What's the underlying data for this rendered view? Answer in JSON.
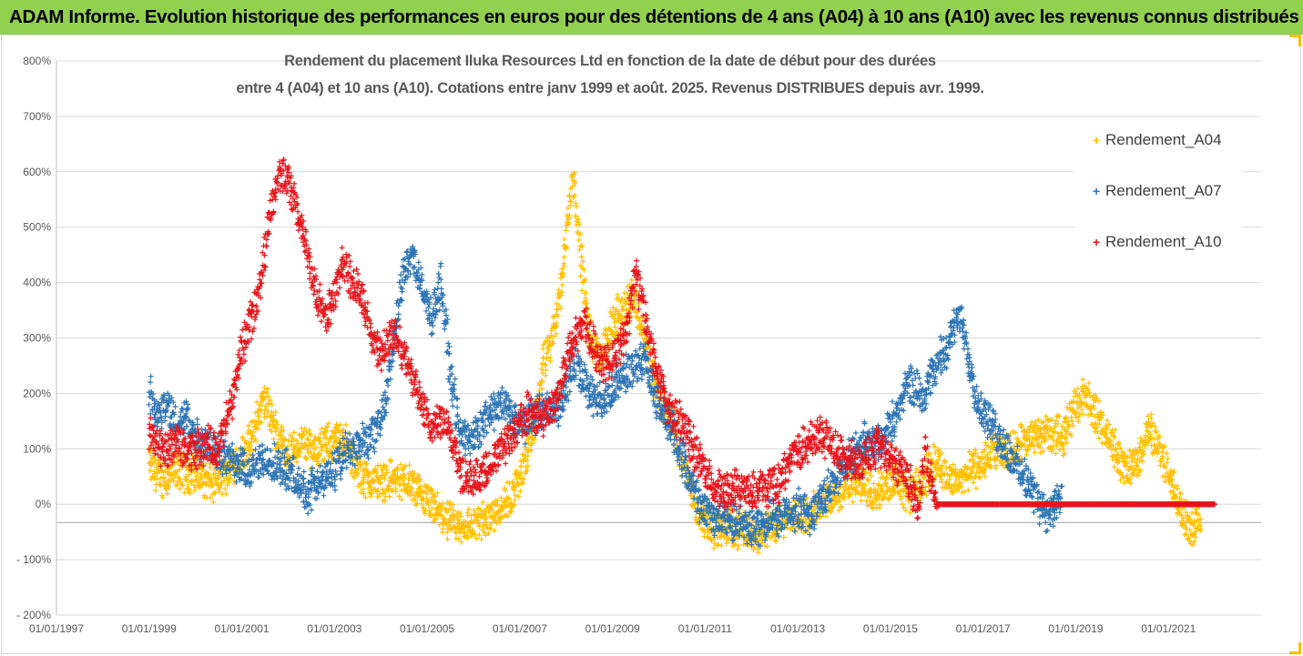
{
  "banner": {
    "title": "ADAM Informe. Evolution historique des performances en euros pour des détentions de 4 ans (A04) à 10 ans (A10) avec les revenus connus distribués"
  },
  "colors": {
    "banner_bg": "#92d050",
    "A04": "#ffc000",
    "A07": "#2e75b6",
    "A10": "#e8141b",
    "grid": "#d9d9d9"
  },
  "chart_data": {
    "type": "scatter",
    "title_line1": "Rendement du placement Iluka Resources Ltd en fonction de la date de début pour des durées",
    "title_line2": "entre 4 (A04) et 10 ans (A10). Cotations entre janv 1999 et août. 2025. Revenus DISTRIBUES depuis avr. 1999.",
    "y_unit": "%",
    "ylim": [
      -200,
      800
    ],
    "y_ticks": [
      {
        "v": 800,
        "label": "800%"
      },
      {
        "v": 700,
        "label": "700%"
      },
      {
        "v": 600,
        "label": "600%"
      },
      {
        "v": 500,
        "label": "500%"
      },
      {
        "v": 400,
        "label": "400%"
      },
      {
        "v": 300,
        "label": "300%"
      },
      {
        "v": 200,
        "label": "200%"
      },
      {
        "v": 100,
        "label": "100%"
      },
      {
        "v": 0,
        "label": "0%"
      },
      {
        "v": -100,
        "label": "- 100%"
      },
      {
        "v": -200,
        "label": "- 200%"
      }
    ],
    "xlim": [
      "01/01/1997",
      "01/01/2023"
    ],
    "x_ticks": [
      "01/01/1997",
      "01/01/1999",
      "01/01/2001",
      "01/01/2003",
      "01/01/2005",
      "01/01/2007",
      "01/01/2009",
      "01/01/2011",
      "01/01/2013",
      "01/01/2015",
      "01/01/2017",
      "01/01/2019",
      "01/01/2021"
    ],
    "grid": "horizontal",
    "legend_position": "right",
    "marker": "+",
    "series": [
      {
        "name": "Rendement_A04",
        "color": "#ffc000",
        "points": [
          [
            "1999.0",
            70
          ],
          [
            "1999.3",
            45
          ],
          [
            "1999.6",
            60
          ],
          [
            "2000.0",
            55
          ],
          [
            "2000.4",
            35
          ],
          [
            "2000.8",
            70
          ],
          [
            "2001.2",
            110
          ],
          [
            "2001.35",
            160
          ],
          [
            "2001.5",
            190
          ],
          [
            "2001.7",
            140
          ],
          [
            "2002.0",
            90
          ],
          [
            "2002.3",
            110
          ],
          [
            "2002.6",
            100
          ],
          [
            "2002.9",
            110
          ],
          [
            "2003.2",
            120
          ],
          [
            "2003.5",
            60
          ],
          [
            "2003.8",
            40
          ],
          [
            "2004.2",
            45
          ],
          [
            "2004.6",
            40
          ],
          [
            "2004.9",
            10
          ],
          [
            "2005.3",
            -20
          ],
          [
            "2005.6",
            -40
          ],
          [
            "2005.9",
            -40
          ],
          [
            "2006.2",
            -30
          ],
          [
            "2006.5",
            -10
          ],
          [
            "2006.8",
            10
          ],
          [
            "2007.1",
            70
          ],
          [
            "2007.3",
            130
          ],
          [
            "2007.5",
            250
          ],
          [
            "2007.7",
            300
          ],
          [
            "2007.9",
            400
          ],
          [
            "2008.05",
            520
          ],
          [
            "2008.15",
            600
          ],
          [
            "2008.3",
            460
          ],
          [
            "2008.5",
            310
          ],
          [
            "2008.7",
            260
          ],
          [
            "2008.9",
            300
          ],
          [
            "2009.1",
            340
          ],
          [
            "2009.3",
            360
          ],
          [
            "2009.45",
            380
          ],
          [
            "2009.6",
            330
          ],
          [
            "2009.8",
            260
          ],
          [
            "2010.0",
            190
          ],
          [
            "2010.3",
            150
          ],
          [
            "2010.6",
            50
          ],
          [
            "2010.9",
            -20
          ],
          [
            "2011.2",
            -45
          ],
          [
            "2011.5",
            -40
          ],
          [
            "2011.8",
            -45
          ],
          [
            "2012.1",
            -55
          ],
          [
            "2012.4",
            -40
          ],
          [
            "2012.7",
            -30
          ],
          [
            "2013.0",
            -20
          ],
          [
            "2013.3",
            -15
          ],
          [
            "2013.6",
            0
          ],
          [
            "2013.9",
            20
          ],
          [
            "2014.2",
            40
          ],
          [
            "2014.5",
            30
          ],
          [
            "2014.8",
            25
          ],
          [
            "2015.1",
            50
          ],
          [
            "2015.4",
            20
          ],
          [
            "2015.7",
            40
          ],
          [
            "2016.0",
            80
          ],
          [
            "2016.3",
            40
          ],
          [
            "2016.6",
            50
          ],
          [
            "2016.9",
            70
          ],
          [
            "2017.2",
            90
          ],
          [
            "2017.5",
            90
          ],
          [
            "2017.8",
            110
          ],
          [
            "2018.1",
            120
          ],
          [
            "2018.4",
            130
          ],
          [
            "2018.7",
            120
          ],
          [
            "2019.0",
            180
          ],
          [
            "2019.2",
            200
          ],
          [
            "2019.5",
            150
          ],
          [
            "2019.8",
            110
          ],
          [
            "2020.0",
            70
          ],
          [
            "2020.3",
            70
          ],
          [
            "2020.6",
            140
          ],
          [
            "2020.9",
            80
          ],
          [
            "2021.1",
            30
          ],
          [
            "2021.3",
            -20
          ],
          [
            "2021.5",
            -40
          ],
          [
            "2021.7",
            -30
          ]
        ]
      },
      {
        "name": "Rendement_A07",
        "color": "#2e75b6",
        "points": [
          [
            "1999.0",
            200
          ],
          [
            "1999.2",
            160
          ],
          [
            "1999.4",
            180
          ],
          [
            "1999.6",
            140
          ],
          [
            "1999.8",
            160
          ],
          [
            "2000.0",
            120
          ],
          [
            "2000.3",
            110
          ],
          [
            "2000.6",
            90
          ],
          [
            "2000.9",
            70
          ],
          [
            "2001.2",
            60
          ],
          [
            "2001.5",
            80
          ],
          [
            "2001.8",
            70
          ],
          [
            "2002.1",
            50
          ],
          [
            "2002.4",
            20
          ],
          [
            "2002.7",
            40
          ],
          [
            "2003.0",
            60
          ],
          [
            "2003.3",
            100
          ],
          [
            "2003.6",
            110
          ],
          [
            "2003.9",
            130
          ],
          [
            "2004.1",
            190
          ],
          [
            "2004.3",
            300
          ],
          [
            "2004.5",
            420
          ],
          [
            "2004.7",
            450
          ],
          [
            "2004.9",
            380
          ],
          [
            "2005.1",
            340
          ],
          [
            "2005.3",
            400
          ],
          [
            "2005.5",
            240
          ],
          [
            "2005.7",
            130
          ],
          [
            "2005.9",
            120
          ],
          [
            "2006.1",
            130
          ],
          [
            "2006.4",
            170
          ],
          [
            "2006.7",
            180
          ],
          [
            "2007.0",
            140
          ],
          [
            "2007.3",
            160
          ],
          [
            "2007.6",
            170
          ],
          [
            "2007.9",
            180
          ],
          [
            "2008.2",
            260
          ],
          [
            "2008.5",
            200
          ],
          [
            "2008.8",
            180
          ],
          [
            "2009.1",
            220
          ],
          [
            "2009.4",
            240
          ],
          [
            "2009.7",
            260
          ],
          [
            "2010.0",
            180
          ],
          [
            "2010.3",
            140
          ],
          [
            "2010.6",
            60
          ],
          [
            "2010.9",
            0
          ],
          [
            "2011.2",
            -20
          ],
          [
            "2011.5",
            -30
          ],
          [
            "2011.8",
            -40
          ],
          [
            "2012.1",
            -45
          ],
          [
            "2012.4",
            -30
          ],
          [
            "2012.7",
            -20
          ],
          [
            "2013.0",
            -10
          ],
          [
            "2013.3",
            -20
          ],
          [
            "2013.6",
            20
          ],
          [
            "2013.9",
            60
          ],
          [
            "2014.2",
            90
          ],
          [
            "2014.5",
            120
          ],
          [
            "2014.8",
            110
          ],
          [
            "2015.1",
            160
          ],
          [
            "2015.4",
            220
          ],
          [
            "2015.7",
            200
          ],
          [
            "2016.0",
            250
          ],
          [
            "2016.3",
            300
          ],
          [
            "2016.5",
            340
          ],
          [
            "2016.7",
            260
          ],
          [
            "2016.9",
            180
          ],
          [
            "2017.2",
            140
          ],
          [
            "2017.5",
            100
          ],
          [
            "2017.8",
            60
          ],
          [
            "2018.1",
            20
          ],
          [
            "2018.4",
            -20
          ],
          [
            "2018.7",
            10
          ]
        ]
      },
      {
        "name": "Rendement_A10",
        "color": "#e8141b",
        "points": [
          [
            "1999.0",
            130
          ],
          [
            "1999.3",
            90
          ],
          [
            "1999.6",
            110
          ],
          [
            "1999.9",
            90
          ],
          [
            "2000.2",
            110
          ],
          [
            "2000.5",
            100
          ],
          [
            "2000.8",
            190
          ],
          [
            "2001.0",
            280
          ],
          [
            "2001.2",
            330
          ],
          [
            "2001.4",
            400
          ],
          [
            "2001.6",
            520
          ],
          [
            "2001.8",
            600
          ],
          [
            "2002.0",
            580
          ],
          [
            "2002.2",
            530
          ],
          [
            "2002.4",
            460
          ],
          [
            "2002.6",
            380
          ],
          [
            "2002.8",
            330
          ],
          [
            "2003.0",
            380
          ],
          [
            "2003.2",
            440
          ],
          [
            "2003.4",
            400
          ],
          [
            "2003.6",
            370
          ],
          [
            "2003.8",
            300
          ],
          [
            "2004.0",
            270
          ],
          [
            "2004.3",
            310
          ],
          [
            "2004.6",
            250
          ],
          [
            "2004.9",
            170
          ],
          [
            "2005.1",
            140
          ],
          [
            "2005.4",
            160
          ],
          [
            "2005.7",
            60
          ],
          [
            "2006.0",
            40
          ],
          [
            "2006.3",
            60
          ],
          [
            "2006.6",
            100
          ],
          [
            "2006.9",
            130
          ],
          [
            "2007.2",
            170
          ],
          [
            "2007.5",
            150
          ],
          [
            "2007.8",
            190
          ],
          [
            "2008.1",
            290
          ],
          [
            "2008.4",
            330
          ],
          [
            "2008.7",
            260
          ],
          [
            "2009.0",
            260
          ],
          [
            "2009.3",
            310
          ],
          [
            "2009.5",
            420
          ],
          [
            "2009.7",
            340
          ],
          [
            "2009.9",
            260
          ],
          [
            "2010.2",
            170
          ],
          [
            "2010.5",
            150
          ],
          [
            "2010.8",
            90
          ],
          [
            "2011.1",
            40
          ],
          [
            "2011.4",
            20
          ],
          [
            "2011.7",
            30
          ],
          [
            "2012.0",
            20
          ],
          [
            "2012.3",
            30
          ],
          [
            "2012.6",
            40
          ],
          [
            "2012.9",
            90
          ],
          [
            "2013.2",
            110
          ],
          [
            "2013.5",
            130
          ],
          [
            "2013.8",
            100
          ],
          [
            "2014.1",
            80
          ],
          [
            "2014.4",
            80
          ],
          [
            "2014.7",
            100
          ],
          [
            "2015.0",
            80
          ],
          [
            "2015.3",
            60
          ],
          [
            "2015.6",
            0
          ],
          [
            "2015.75",
            90
          ],
          [
            "2016.0",
            0
          ],
          [
            "2022.0",
            0
          ]
        ]
      }
    ]
  }
}
